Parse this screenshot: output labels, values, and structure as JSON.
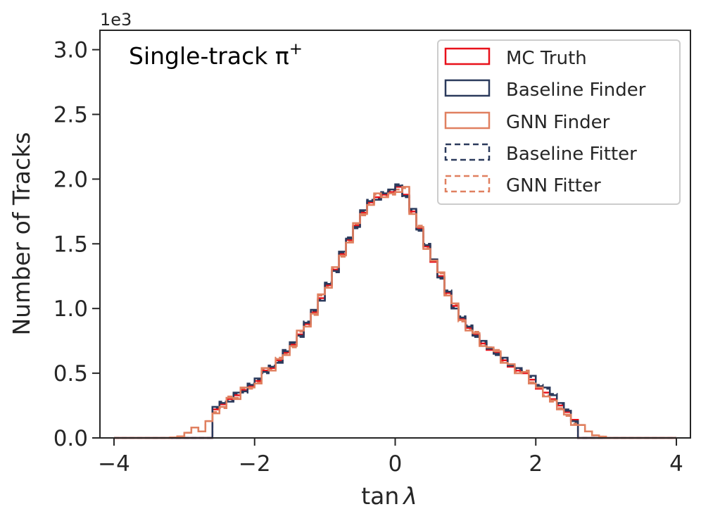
{
  "chart_data": {
    "type": "histogram-step",
    "annotation": "Single-track π",
    "annotation_superscript": "+",
    "xlabel": "tan",
    "xlabel_symbol": "λ",
    "ylabel": "Number of Tracks",
    "y_offset_label": "1e3",
    "xlim": [
      -4.2,
      4.2
    ],
    "ylim": [
      0,
      3.15
    ],
    "x_ticks": [
      -4,
      -2,
      0,
      2,
      4
    ],
    "x_tick_labels": [
      "−4",
      "−2",
      "0",
      "2",
      "4"
    ],
    "y_ticks": [
      0.0,
      0.5,
      1.0,
      1.5,
      2.0,
      2.5,
      3.0
    ],
    "y_tick_labels": [
      "0.0",
      "0.5",
      "1.0",
      "1.5",
      "2.0",
      "2.5",
      "3.0"
    ],
    "legend_position": "top-right",
    "series": [
      {
        "name": "MC Truth",
        "color": "#e8111a",
        "style": "solid"
      },
      {
        "name": "Baseline Finder",
        "color": "#2b3a5c",
        "style": "solid"
      },
      {
        "name": "GNN Finder",
        "color": "#e08060",
        "style": "solid"
      },
      {
        "name": "Baseline Fitter",
        "color": "#2b3a5c",
        "style": "dashed"
      },
      {
        "name": "GNN Fitter",
        "color": "#e08060",
        "style": "dashed"
      }
    ],
    "bin_width": 0.1,
    "bin_centers": [
      -2.55,
      -2.45,
      -2.35,
      -2.25,
      -2.15,
      -2.05,
      -1.95,
      -1.85,
      -1.75,
      -1.65,
      -1.55,
      -1.45,
      -1.35,
      -1.25,
      -1.15,
      -1.05,
      -0.95,
      -0.85,
      -0.75,
      -0.65,
      -0.55,
      -0.45,
      -0.35,
      -0.25,
      -0.15,
      -0.05,
      0.05,
      0.15,
      0.25,
      0.35,
      0.45,
      0.55,
      0.65,
      0.75,
      0.85,
      0.95,
      1.05,
      1.15,
      1.25,
      1.35,
      1.45,
      1.55,
      1.65,
      1.75,
      1.85,
      1.95,
      2.05,
      2.15,
      2.25,
      2.35,
      2.45,
      2.55
    ],
    "truth_counts_1e3": [
      0.22,
      0.26,
      0.3,
      0.33,
      0.37,
      0.4,
      0.44,
      0.52,
      0.54,
      0.6,
      0.66,
      0.72,
      0.8,
      0.88,
      0.97,
      1.08,
      1.18,
      1.3,
      1.42,
      1.53,
      1.64,
      1.74,
      1.82,
      1.86,
      1.88,
      1.9,
      1.94,
      1.88,
      1.75,
      1.62,
      1.48,
      1.36,
      1.25,
      1.12,
      1.02,
      0.92,
      0.85,
      0.8,
      0.73,
      0.68,
      0.66,
      0.6,
      0.55,
      0.52,
      0.5,
      0.45,
      0.38,
      0.35,
      0.3,
      0.25,
      0.2,
      0.14
    ],
    "gnn_finder_tail_counts_1e3": [
      0.004,
      0.012,
      0.04,
      0.08,
      0.05,
      0.13,
      0.09,
      0.04,
      0.02,
      0.006
    ]
  }
}
